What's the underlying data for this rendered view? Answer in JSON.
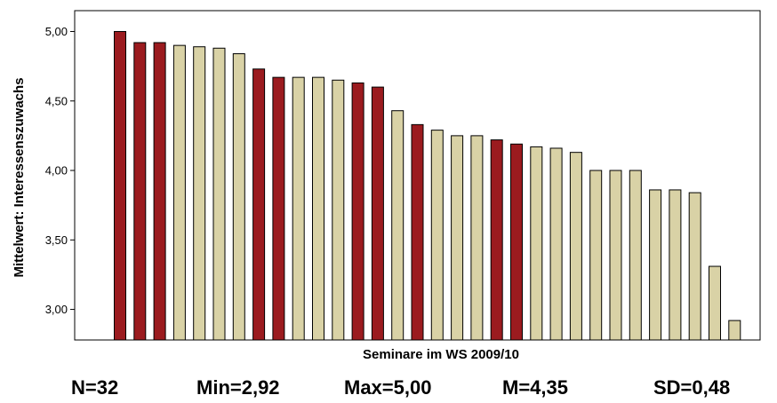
{
  "chart_data": {
    "type": "bar",
    "xlabel": "Seminare im WS 2009/10",
    "ylabel": "Mittelwert: Interessenszuwachs",
    "ylim": [
      2.78,
      5.15
    ],
    "yticks": [
      "3,00",
      "3,50",
      "4,00",
      "4,50",
      "5,00"
    ],
    "ytick_values": [
      3.0,
      3.5,
      4.0,
      4.5,
      5.0
    ],
    "grid": false,
    "colors": {
      "highlight": "#9b1b1f",
      "normal": "#d9d2a6",
      "outline": "#000000"
    },
    "values": [
      5.0,
      4.92,
      4.92,
      4.9,
      4.89,
      4.88,
      4.84,
      4.73,
      4.67,
      4.67,
      4.67,
      4.65,
      4.63,
      4.6,
      4.43,
      4.33,
      4.29,
      4.25,
      4.25,
      4.22,
      4.19,
      4.17,
      4.16,
      4.13,
      4.0,
      4.0,
      4.0,
      3.86,
      3.86,
      3.84,
      3.31,
      2.92
    ],
    "highlighted": [
      true,
      true,
      true,
      false,
      false,
      false,
      false,
      true,
      true,
      false,
      false,
      false,
      true,
      true,
      false,
      true,
      false,
      false,
      false,
      true,
      true,
      false,
      false,
      false,
      false,
      false,
      false,
      false,
      false,
      false,
      false,
      false
    ]
  },
  "stats": {
    "n": "N=32",
    "min": "Min=2,92",
    "max": "Max=5,00",
    "mean": "M=4,35",
    "sd": "SD=0,48"
  }
}
